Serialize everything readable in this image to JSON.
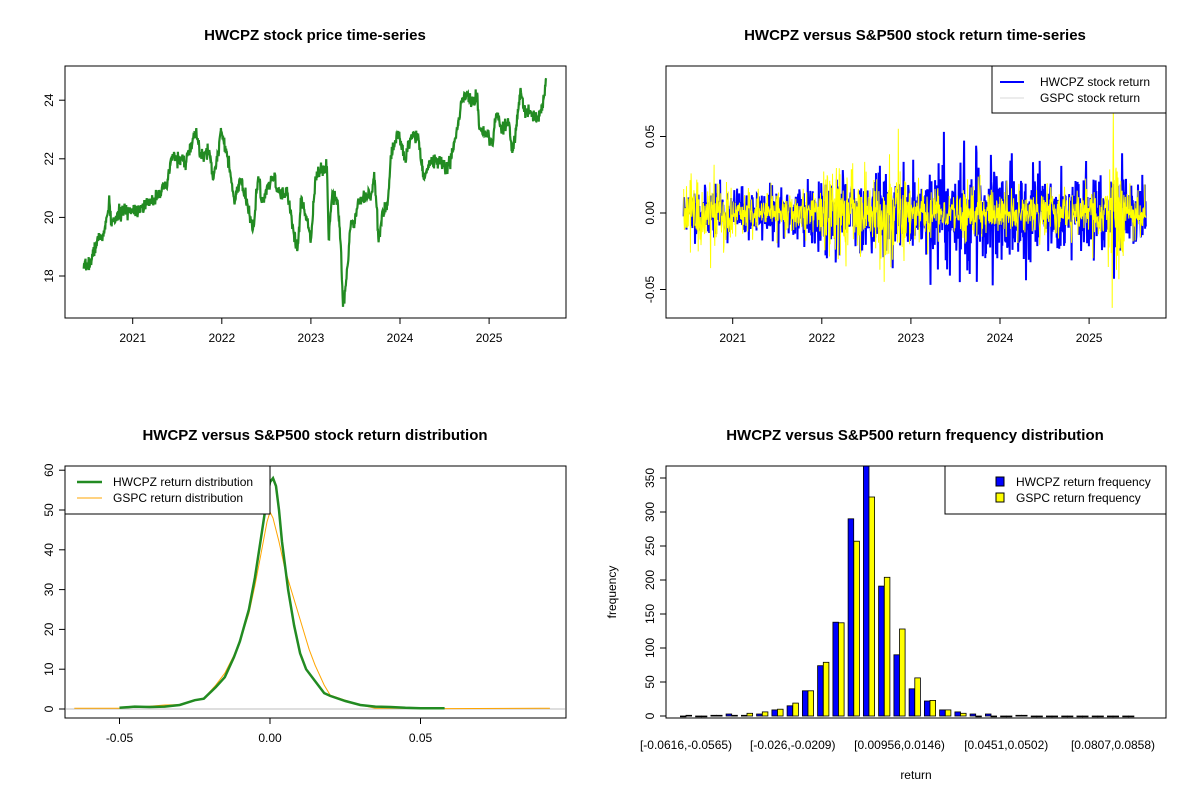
{
  "chart_data": [
    {
      "type": "line",
      "title": "HWCPZ stock price time-series",
      "xlabel": "",
      "ylabel": "",
      "xlim": [
        2020.2,
        2025.9
      ],
      "ylim": [
        16.6,
        25.2
      ],
      "x_ticks": [
        "2021",
        "2022",
        "2023",
        "2024",
        "2025"
      ],
      "y_ticks": [
        "18",
        "20",
        "22",
        "24"
      ],
      "color": "#228B22",
      "series": [
        {
          "name": "HWCPZ price",
          "points": [
            [
              2020.45,
              18.25
            ],
            [
              2020.53,
              18.5
            ],
            [
              2020.6,
              19.2
            ],
            [
              2020.68,
              19.45
            ],
            [
              2020.74,
              20.5
            ],
            [
              2020.76,
              19.8
            ],
            [
              2020.88,
              20.2
            ],
            [
              2021.05,
              20.3
            ],
            [
              2021.21,
              20.5
            ],
            [
              2021.3,
              20.9
            ],
            [
              2021.38,
              21.0
            ],
            [
              2021.44,
              22.1
            ],
            [
              2021.59,
              21.9
            ],
            [
              2021.69,
              22.7
            ],
            [
              2021.71,
              22.95
            ],
            [
              2021.77,
              22.0
            ],
            [
              2021.86,
              22.3
            ],
            [
              2021.9,
              21.3
            ],
            [
              2021.96,
              22.2
            ],
            [
              2021.99,
              23.05
            ],
            [
              2022.04,
              22.4
            ],
            [
              2022.1,
              21.4
            ],
            [
              2022.14,
              20.5
            ],
            [
              2022.21,
              21.3
            ],
            [
              2022.27,
              20.6
            ],
            [
              2022.35,
              19.6
            ],
            [
              2022.41,
              21.4
            ],
            [
              2022.45,
              20.5
            ],
            [
              2022.58,
              21.4
            ],
            [
              2022.66,
              20.7
            ],
            [
              2022.74,
              20.85
            ],
            [
              2022.81,
              19.4
            ],
            [
              2022.85,
              18.9
            ],
            [
              2022.89,
              20.6
            ],
            [
              2022.95,
              20.05
            ],
            [
              2023.0,
              19.25
            ],
            [
              2023.05,
              21.4
            ],
            [
              2023.18,
              21.75
            ],
            [
              2023.2,
              19.25
            ],
            [
              2023.24,
              20.85
            ],
            [
              2023.3,
              20.6
            ],
            [
              2023.34,
              18.8
            ],
            [
              2023.36,
              16.95
            ],
            [
              2023.4,
              17.9
            ],
            [
              2023.45,
              19.85
            ],
            [
              2023.49,
              19.85
            ],
            [
              2023.53,
              20.6
            ],
            [
              2023.69,
              20.85
            ],
            [
              2023.71,
              21.55
            ],
            [
              2023.76,
              19.15
            ],
            [
              2023.8,
              20.2
            ],
            [
              2023.86,
              20.4
            ],
            [
              2023.9,
              22.1
            ],
            [
              2023.98,
              22.95
            ],
            [
              2024.05,
              22.0
            ],
            [
              2024.15,
              22.9
            ],
            [
              2024.21,
              22.65
            ],
            [
              2024.27,
              21.3
            ],
            [
              2024.33,
              21.85
            ],
            [
              2024.44,
              22.0
            ],
            [
              2024.52,
              21.65
            ],
            [
              2024.58,
              22.05
            ],
            [
              2024.64,
              23.0
            ],
            [
              2024.69,
              23.9
            ],
            [
              2024.75,
              24.25
            ],
            [
              2024.79,
              23.9
            ],
            [
              2024.87,
              24.15
            ],
            [
              2024.89,
              23.0
            ],
            [
              2024.98,
              22.8
            ],
            [
              2025.04,
              22.45
            ],
            [
              2025.08,
              23.55
            ],
            [
              2025.14,
              23.0
            ],
            [
              2025.22,
              23.25
            ],
            [
              2025.26,
              22.2
            ],
            [
              2025.31,
              23.1
            ],
            [
              2025.35,
              24.35
            ],
            [
              2025.39,
              23.7
            ],
            [
              2025.47,
              23.55
            ],
            [
              2025.55,
              23.3
            ],
            [
              2025.6,
              23.9
            ],
            [
              2025.64,
              24.75
            ]
          ]
        }
      ]
    },
    {
      "type": "line",
      "title": "HWCPZ versus S&P500 stock return time-series",
      "xlim": [
        2020.2,
        2025.9
      ],
      "ylim": [
        -0.07,
        0.095
      ],
      "x_ticks": [
        "2021",
        "2022",
        "2023",
        "2024",
        "2025"
      ],
      "y_ticks": [
        "-0.05",
        "0.00",
        "0.05"
      ],
      "legend_position": "top-right",
      "series": [
        {
          "name": "HWCPZ stock return",
          "color": "#0000FF",
          "volatility_regimes": [
            [
              2020.45,
              2021.7,
              0.008
            ],
            [
              2021.7,
              2023.2,
              0.012
            ],
            [
              2023.2,
              2024.0,
              0.018
            ],
            [
              2024.0,
              2024.4,
              0.014
            ],
            [
              2024.4,
              2025.64,
              0.011
            ]
          ],
          "extremes": [
            [
              2023.37,
              0.053
            ],
            [
              2023.22,
              -0.047
            ],
            [
              2023.73,
              0.044
            ],
            [
              2023.74,
              -0.045
            ],
            [
              2024.29,
              -0.044
            ],
            [
              2025.37,
              0.039
            ],
            [
              2025.28,
              -0.043
            ],
            [
              2023.9,
              0.038
            ]
          ]
        },
        {
          "name": "GSPC stock return",
          "color": "#FFFF00",
          "volatility_regimes": [
            [
              2020.45,
              2021.0,
              0.011
            ],
            [
              2021.0,
              2022.0,
              0.007
            ],
            [
              2022.0,
              2023.0,
              0.015
            ],
            [
              2023.0,
              2025.2,
              0.008
            ],
            [
              2025.2,
              2025.4,
              0.02
            ],
            [
              2025.4,
              2025.64,
              0.007
            ]
          ],
          "extremes": [
            [
              2022.86,
              0.055
            ],
            [
              2025.27,
              0.066
            ],
            [
              2025.26,
              -0.062
            ],
            [
              2022.7,
              -0.045
            ],
            [
              2020.75,
              -0.036
            ]
          ]
        }
      ]
    },
    {
      "type": "line",
      "title": "HWCPZ versus S&P500 stock return distribution",
      "xlim": [
        -0.068,
        0.097
      ],
      "ylim": [
        -2,
        61
      ],
      "x_ticks": [
        "-0.05",
        "0.00",
        "0.05"
      ],
      "y_ticks": [
        "0",
        "10",
        "20",
        "30",
        "40",
        "50",
        "60"
      ],
      "legend_position": "top-left",
      "series": [
        {
          "name": "HWCPZ return distribution",
          "color": "#228B22",
          "points": [
            [
              -0.05,
              0.3
            ],
            [
              -0.045,
              0.6
            ],
            [
              -0.04,
              0.5
            ],
            [
              -0.035,
              0.6
            ],
            [
              -0.03,
              1.0
            ],
            [
              -0.025,
              2.2
            ],
            [
              -0.022,
              2.6
            ],
            [
              -0.018,
              5.5
            ],
            [
              -0.015,
              8
            ],
            [
              -0.012,
              13
            ],
            [
              -0.01,
              17
            ],
            [
              -0.007,
              25
            ],
            [
              -0.005,
              33
            ],
            [
              -0.003,
              43
            ],
            [
              -0.001,
              53
            ],
            [
              0.0,
              57
            ],
            [
              0.001,
              58
            ],
            [
              0.002,
              56
            ],
            [
              0.003,
              50
            ],
            [
              0.004,
              42
            ],
            [
              0.006,
              30
            ],
            [
              0.008,
              21
            ],
            [
              0.01,
              14
            ],
            [
              0.012,
              10
            ],
            [
              0.015,
              7
            ],
            [
              0.018,
              4
            ],
            [
              0.02,
              3.3
            ],
            [
              0.025,
              2
            ],
            [
              0.03,
              1.0
            ],
            [
              0.035,
              0.6
            ],
            [
              0.04,
              0.5
            ],
            [
              0.045,
              0.3
            ],
            [
              0.05,
              0.2
            ],
            [
              0.058,
              0.2
            ]
          ]
        },
        {
          "name": "GSPC return distribution",
          "color": "#FFA500",
          "points": [
            [
              -0.065,
              0.2
            ],
            [
              -0.06,
              0.2
            ],
            [
              -0.05,
              0.2
            ],
            [
              -0.04,
              0.7
            ],
            [
              -0.035,
              1.0
            ],
            [
              -0.03,
              1.1
            ],
            [
              -0.025,
              2.3
            ],
            [
              -0.022,
              2.7
            ],
            [
              -0.018,
              6
            ],
            [
              -0.015,
              9
            ],
            [
              -0.012,
              13.5
            ],
            [
              -0.01,
              17
            ],
            [
              -0.007,
              24
            ],
            [
              -0.005,
              31
            ],
            [
              -0.003,
              39
            ],
            [
              -0.001,
              47
            ],
            [
              0.0,
              49.5
            ],
            [
              0.001,
              48
            ],
            [
              0.003,
              42
            ],
            [
              0.005,
              35
            ],
            [
              0.007,
              30
            ],
            [
              0.009,
              25
            ],
            [
              0.011,
              20
            ],
            [
              0.013,
              15
            ],
            [
              0.015,
              11
            ],
            [
              0.018,
              6
            ],
            [
              0.02,
              3.5
            ],
            [
              0.025,
              2.2
            ],
            [
              0.03,
              1.0
            ],
            [
              0.035,
              0.2
            ],
            [
              0.05,
              0.2
            ],
            [
              0.055,
              0.2
            ],
            [
              0.058,
              0.1
            ],
            [
              0.09,
              0.2
            ],
            [
              0.093,
              0.2
            ]
          ]
        }
      ]
    },
    {
      "type": "bar",
      "title": "HWCPZ versus S&P500 return frequency distribution",
      "xlabel": "return",
      "ylabel": "frequency",
      "ylim": [
        0,
        366
      ],
      "y_ticks": [
        "0",
        "50",
        "100",
        "150",
        "200",
        "250",
        "300",
        "350"
      ],
      "x_tick_labels": [
        {
          "index": 0,
          "label": "[-0.0616,-0.0565)"
        },
        {
          "index": 7,
          "label": "[-0.026,-0.0209)"
        },
        {
          "index": 14,
          "label": "[0.00956,0.0146)"
        },
        {
          "index": 21,
          "label": "[0.0451,0.0502)"
        },
        {
          "index": 28,
          "label": "[0.0807,0.0858)"
        }
      ],
      "legend_position": "top-right",
      "series": [
        {
          "name": "HWCPZ return frequency",
          "color": "#0000FF",
          "values": [
            0,
            0,
            1,
            3,
            1,
            3,
            9,
            15,
            37,
            74,
            138,
            290,
            370,
            191,
            90,
            40,
            22,
            9,
            6,
            3,
            3,
            0,
            1,
            0,
            0,
            0,
            0,
            0,
            0,
            0
          ]
        },
        {
          "name": "GSPC return frequency",
          "color": "#FFFF00",
          "values": [
            1,
            0,
            1,
            1,
            4,
            6,
            10,
            19,
            37,
            79,
            137,
            257,
            322,
            204,
            128,
            56,
            23,
            9,
            4,
            0,
            0,
            0,
            1,
            0,
            0,
            0,
            0,
            0,
            0,
            0
          ]
        }
      ]
    }
  ]
}
